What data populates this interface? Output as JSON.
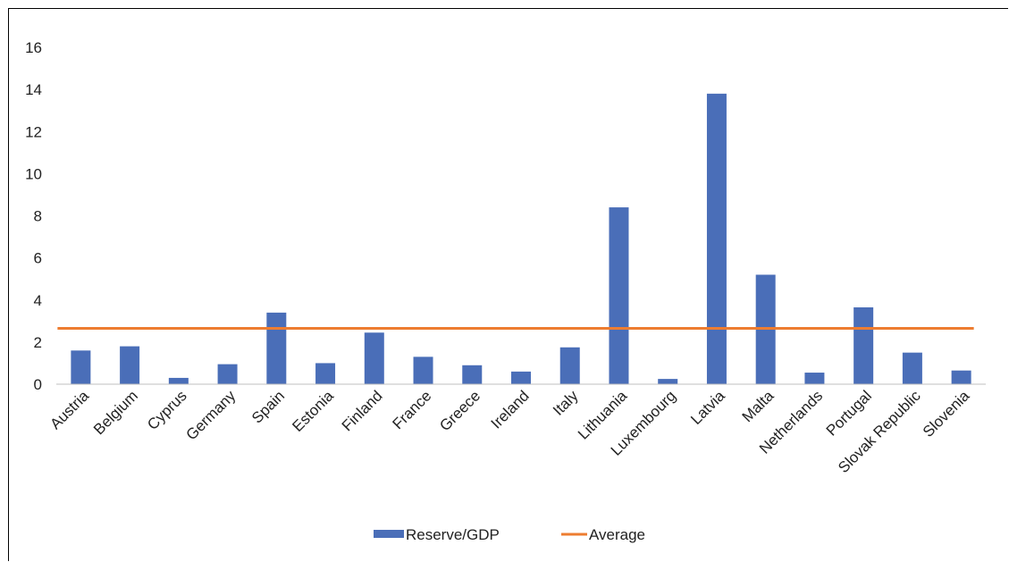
{
  "chart_data": {
    "type": "bar",
    "categories": [
      "Austria",
      "Belgium",
      "Cyprus",
      "Germany",
      "Spain",
      "Estonia",
      "Finland",
      "France",
      "Greece",
      "Ireland",
      "Italy",
      "Lithuania",
      "Luxembourg",
      "Latvia",
      "Malta",
      "Netherlands",
      "Portugal",
      "Slovak Republic",
      "Slovenia"
    ],
    "series": [
      {
        "name": "Reserve/GDP",
        "type": "bar",
        "color": "#4a6eb8",
        "values": [
          1.6,
          1.8,
          0.3,
          0.95,
          3.4,
          1.0,
          2.45,
          1.3,
          0.9,
          0.6,
          1.75,
          8.4,
          0.25,
          13.8,
          5.2,
          0.55,
          3.65,
          1.5,
          0.65
        ]
      },
      {
        "name": "Average",
        "type": "line",
        "color": "#ed7d31",
        "value": 2.65
      }
    ],
    "ylim": [
      0,
      16
    ],
    "yticks": [
      "0",
      "2",
      "4",
      "6",
      "8",
      "10",
      "12",
      "14",
      "16"
    ],
    "title": "",
    "xlabel": "",
    "ylabel": "",
    "grid": false,
    "legend_position": "bottom"
  }
}
